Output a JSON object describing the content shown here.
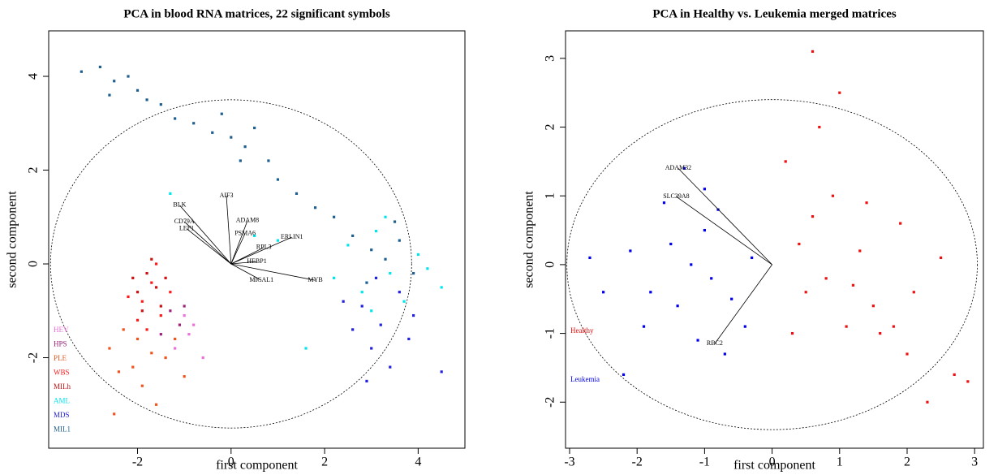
{
  "chart_data": [
    {
      "type": "scatter",
      "title": "PCA in blood RNA matrices, 22 significant symbols",
      "xlabel": "first component",
      "ylabel": "second component",
      "xlim": [
        -3.9,
        5.0
      ],
      "ylim": [
        -3.93,
        4.97
      ],
      "xticks": [
        -2,
        0,
        2,
        4
      ],
      "yticks": [
        -2,
        0,
        2,
        4
      ],
      "legend": "bottomleft",
      "circle": {
        "rx": 3.86,
        "ry": 3.5
      },
      "series": [
        {
          "name": "HEV",
          "color": "#ee6fd8",
          "x": [
            -1.0,
            -0.9,
            -0.6,
            -1.2,
            -0.8
          ],
          "y": [
            -1.1,
            -1.5,
            -2.0,
            -1.8,
            -1.3
          ]
        },
        {
          "name": "HPS",
          "color": "#a0207a",
          "x": [
            -1.3,
            -1.1,
            -1.5,
            -1.0
          ],
          "y": [
            -1.0,
            -1.3,
            -1.5,
            -0.9
          ]
        },
        {
          "name": "PLE",
          "color": "#f0541e",
          "x": [
            -2.0,
            -1.7,
            -2.3,
            -1.4,
            -2.4,
            -1.9,
            -1.2,
            -2.6,
            -1.6,
            -2.5,
            -1.0,
            -2.1
          ],
          "y": [
            -1.6,
            -1.9,
            -1.4,
            -2.0,
            -2.3,
            -2.6,
            -1.6,
            -1.8,
            -3.0,
            -3.2,
            -2.4,
            -2.2
          ]
        },
        {
          "name": "WBS",
          "color": "#ff1a1a",
          "x": [
            -1.7,
            -1.9,
            -1.6,
            -1.3,
            -2.0,
            -1.8,
            -1.5,
            -2.2
          ],
          "y": [
            -0.4,
            -0.8,
            0.0,
            -0.6,
            -1.2,
            -1.4,
            -1.1,
            -0.7
          ]
        },
        {
          "name": "MILh",
          "color": "#cc1111",
          "x": [
            -1.8,
            -1.6,
            -2.0,
            -1.7,
            -1.5,
            -1.9,
            -2.1,
            -1.4
          ],
          "y": [
            -0.2,
            -0.5,
            -0.6,
            0.1,
            -0.9,
            -1.0,
            -0.3,
            -0.3
          ]
        },
        {
          "name": "AML",
          "color": "#00e5ee",
          "x": [
            2.5,
            3.1,
            3.4,
            4.0,
            2.8,
            3.7,
            2.2,
            4.5,
            1.6,
            1.0,
            3.3,
            4.2,
            3.0,
            -1.3,
            0.5
          ],
          "y": [
            0.4,
            0.7,
            -0.2,
            0.2,
            -0.6,
            -0.8,
            -0.3,
            -0.5,
            -1.8,
            0.5,
            1.0,
            -0.1,
            -1.0,
            1.5,
            0.6
          ]
        },
        {
          "name": "MDS",
          "color": "#2020dd",
          "x": [
            2.8,
            3.2,
            3.6,
            3.0,
            3.4,
            2.6,
            3.9,
            4.5,
            3.1,
            2.4,
            3.8,
            2.9
          ],
          "y": [
            -0.9,
            -1.3,
            -0.6,
            -1.8,
            -2.2,
            -1.4,
            -1.1,
            -2.3,
            -0.3,
            -0.8,
            -1.6,
            -2.5
          ]
        },
        {
          "name": "MIL1",
          "color": "#1f5f8f",
          "x": [
            -3.2,
            -2.8,
            -2.5,
            -2.2,
            -2.0,
            -2.6,
            -1.8,
            -1.2,
            -0.8,
            -0.4,
            0.0,
            0.3,
            0.5,
            0.8,
            1.0,
            1.4,
            1.8,
            2.2,
            2.6,
            3.0,
            3.3,
            3.6,
            3.9,
            2.9,
            3.5,
            0.2,
            -0.2,
            -1.5
          ],
          "y": [
            4.1,
            4.2,
            3.9,
            4.0,
            3.7,
            3.6,
            3.5,
            3.1,
            3.0,
            2.8,
            2.7,
            2.5,
            2.9,
            2.2,
            1.8,
            1.5,
            1.2,
            1.0,
            0.6,
            0.3,
            0.1,
            0.5,
            -0.2,
            -0.4,
            0.9,
            2.2,
            3.2,
            3.4
          ]
        }
      ],
      "loadings": [
        {
          "label": "BLK",
          "x": -1.1,
          "y": 1.25
        },
        {
          "label": "AIF3",
          "x": -0.1,
          "y": 1.45
        },
        {
          "label": "CD79A",
          "x": -1.0,
          "y": 0.9
        },
        {
          "label": "LEF1",
          "x": -0.95,
          "y": 0.75
        },
        {
          "label": "ADAM8",
          "x": 0.35,
          "y": 0.92
        },
        {
          "label": "PSMA6",
          "x": 0.3,
          "y": 0.65
        },
        {
          "label": "ERLIN1",
          "x": 1.3,
          "y": 0.57
        },
        {
          "label": "RPL3",
          "x": 0.7,
          "y": 0.35
        },
        {
          "label": "HEBP1",
          "x": 0.55,
          "y": 0.05
        },
        {
          "label": "MICAL1",
          "x": 0.65,
          "y": -0.35
        },
        {
          "label": "MYB",
          "x": 1.8,
          "y": -0.35
        }
      ]
    },
    {
      "type": "scatter",
      "title": "PCA in Healthy vs. Leukemia merged matrices",
      "xlabel": "first component",
      "ylabel": "second component",
      "xlim": [
        -3.06,
        3.13
      ],
      "ylim": [
        -2.67,
        3.4
      ],
      "xticks": [
        -3,
        -2,
        -1,
        0,
        1,
        2,
        3
      ],
      "yticks": [
        -2,
        -1,
        0,
        1,
        2,
        3
      ],
      "legend": "bottomleft",
      "circle": {
        "rx": 3.04,
        "ry": 2.4
      },
      "series": [
        {
          "name": "Healthy",
          "color": "#ee1111",
          "x": [
            0.6,
            0.4,
            0.9,
            1.2,
            1.5,
            1.8,
            1.3,
            2.0,
            1.6,
            0.2,
            0.7,
            2.3,
            2.7,
            1.1,
            0.8,
            1.9,
            2.5,
            0.5,
            1.4,
            0.3,
            1.0,
            2.1,
            2.9,
            0.6
          ],
          "y": [
            0.7,
            0.3,
            1.0,
            -0.3,
            -0.6,
            -0.9,
            0.2,
            -1.3,
            -1.0,
            1.5,
            2.0,
            -2.0,
            -1.6,
            -0.9,
            -0.2,
            0.6,
            0.1,
            -0.4,
            0.9,
            -1.0,
            2.5,
            -0.4,
            -1.7,
            3.1
          ]
        },
        {
          "name": "Leukemia",
          "color": "#0000ee",
          "x": [
            -1.2,
            -1.5,
            -0.9,
            -1.8,
            -1.0,
            -0.6,
            -2.1,
            -1.4,
            -0.8,
            -1.6,
            -2.5,
            -0.3,
            -1.1,
            -2.2,
            -0.7,
            -1.3,
            -2.7,
            -0.4,
            -1.9,
            -1.0
          ],
          "y": [
            0.0,
            0.3,
            -0.2,
            -0.4,
            0.5,
            -0.5,
            0.2,
            -0.6,
            0.8,
            0.9,
            -0.4,
            0.1,
            -1.1,
            -1.6,
            -1.3,
            1.4,
            0.1,
            -0.9,
            -0.9,
            1.1
          ]
        }
      ],
      "loadings": [
        {
          "label": "ADAM32",
          "x": -1.39,
          "y": 1.4
        },
        {
          "label": "SLC39A8",
          "x": -1.42,
          "y": 0.99
        },
        {
          "label": "RBC2",
          "x": -0.85,
          "y": -1.15
        }
      ]
    }
  ]
}
